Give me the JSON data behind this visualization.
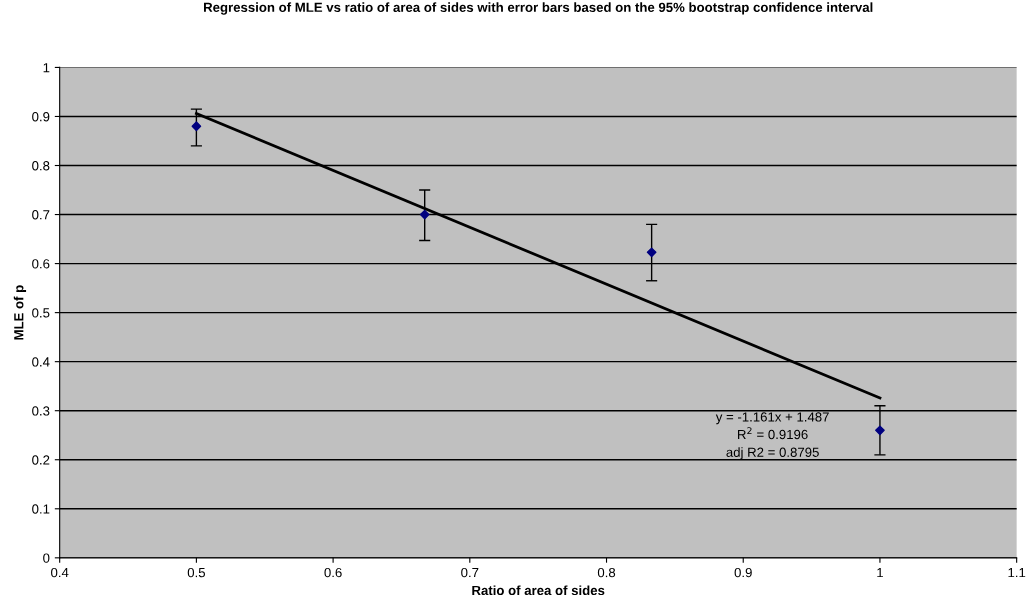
{
  "chart_data": {
    "type": "scatter",
    "title": "Regression of MLE vs ratio of area of sides with error bars based on the 95% bootstrap confidence interval",
    "xlabel": "Ratio of area of sides",
    "ylabel": "MLE of p",
    "series": [
      {
        "color": "#000080",
        "marker": "diamond",
        "x": [
          0.5,
          0.667,
          0.833,
          1.0
        ],
        "values": [
          0.88,
          0.7,
          0.623,
          0.26
        ],
        "errors": [
          [
            0.84,
            0.915
          ],
          [
            0.647,
            0.75
          ],
          [
            0.565,
            0.68
          ],
          [
            0.21,
            0.31
          ]
        ]
      },
      {
        "type": "line",
        "color": "#000000",
        "marker": "none",
        "x": [
          0.5,
          1.0
        ],
        "values": [
          0.906,
          0.326
        ]
      }
    ],
    "xlim": [
      0.4,
      1.1
    ],
    "xticks": [
      0.4,
      0.5,
      0.6,
      0.7,
      0.8,
      0.9,
      1,
      1.1
    ],
    "ylim": [
      0,
      1
    ],
    "yticks": [
      0,
      0.1,
      0.2,
      0.3,
      0.4,
      0.5,
      0.6,
      0.7,
      0.8,
      0.9,
      1
    ],
    "grid": "y",
    "annotations": [
      "y = -1.161x + 1.487",
      "R$^{2}$ = 0.9196",
      "adj R2 = 0.8795"
    ]
  }
}
